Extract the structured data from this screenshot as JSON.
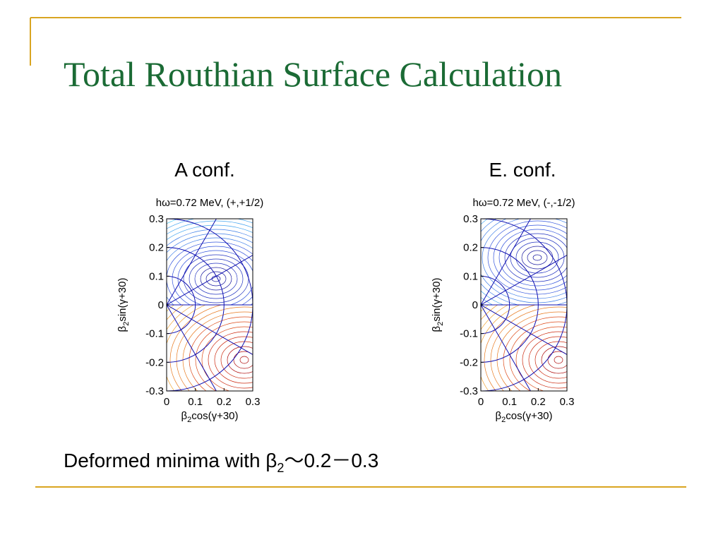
{
  "title": "Total Routhian Surface Calculation",
  "panels": [
    {
      "heading": "A conf.",
      "plot_title": "hω=0.72 MeV, (+,+1/2)",
      "y_label": {
        "symbol": "β",
        "sub": "2",
        "text": "sin(γ+30)"
      },
      "x_label": {
        "symbol": "β",
        "sub": "2",
        "text": "cos(γ+30)"
      },
      "yticks": [
        0.3,
        0.2,
        0.1,
        0,
        -0.1,
        -0.2,
        -0.3
      ],
      "xticks": [
        0,
        0.1,
        0.2,
        0.3
      ]
    },
    {
      "heading": "E. conf.",
      "plot_title": "hω=0.72 MeV, (-,-1/2)",
      "y_label": {
        "symbol": "β",
        "sub": "2",
        "text": "sin(γ+30)"
      },
      "x_label": {
        "symbol": "β",
        "sub": "2",
        "text": "cos(γ+30)"
      },
      "yticks": [
        0.3,
        0.2,
        0.1,
        0,
        -0.1,
        -0.2,
        -0.3
      ],
      "xticks": [
        0,
        0.1,
        0.2,
        0.3
      ]
    }
  ],
  "footer": {
    "text": "Deformed minima with β",
    "sub": "2",
    "tail": "～0.2－0.3"
  }
}
